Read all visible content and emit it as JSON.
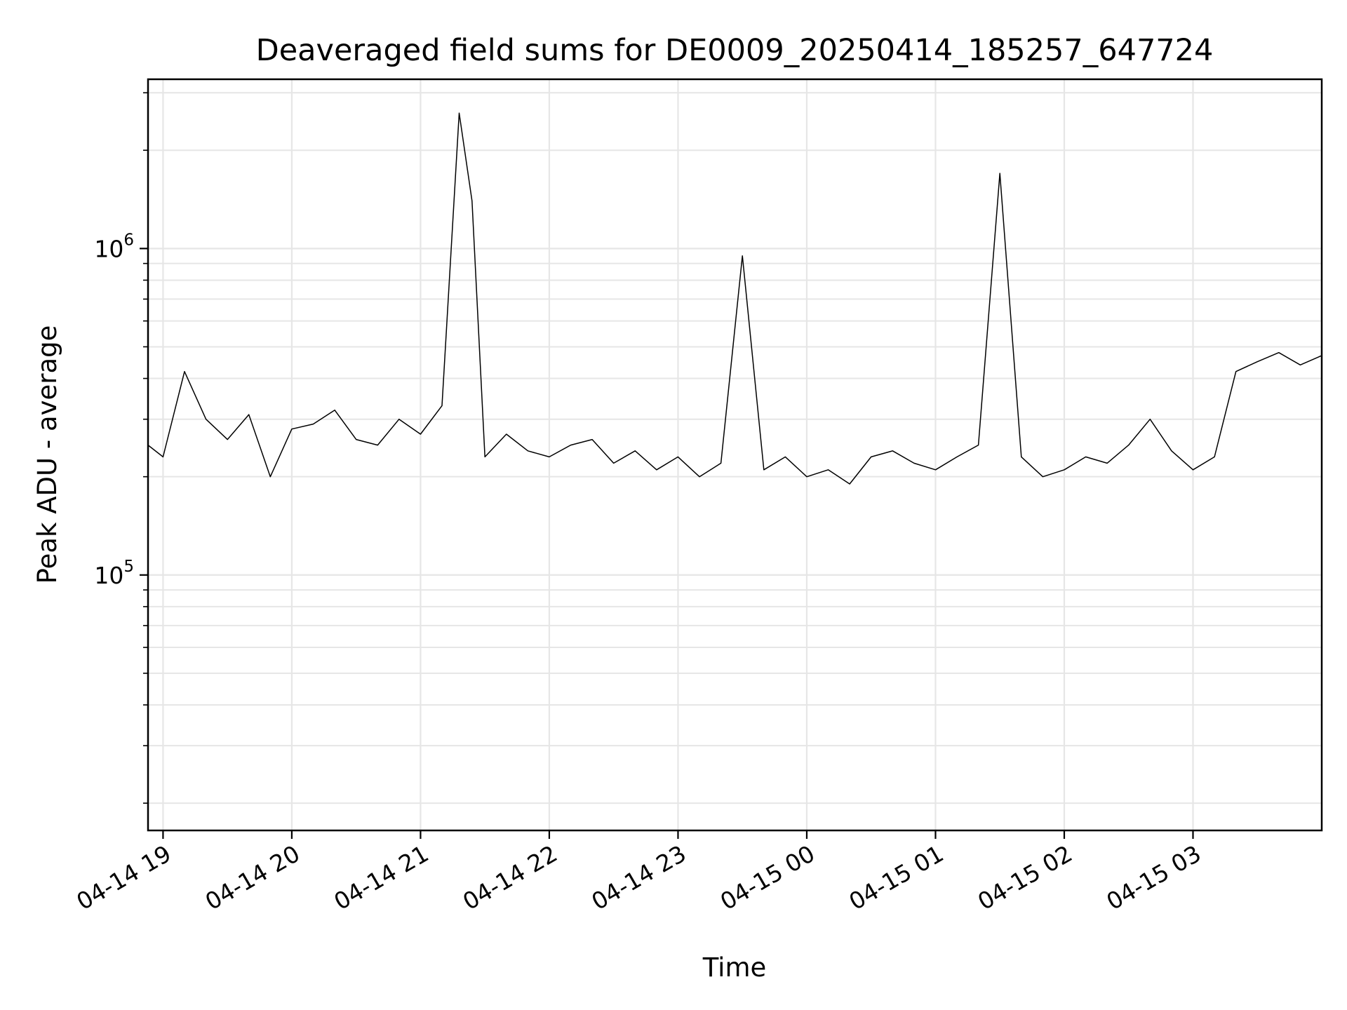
{
  "chart_data": {
    "type": "line",
    "title": "Deaveraged field sums for DE0009_20250414_185257_647724",
    "xlabel": "Time",
    "ylabel": "Peak ADU - average",
    "y_scale": "log",
    "grid": true,
    "grid_color": "#e6e6e6",
    "line_color": "#000000",
    "xlim": [
      "2025-04-14 18:53",
      "2025-04-15 04:00"
    ],
    "ylim": [
      16500,
      3300000
    ],
    "x_ticks": [
      {
        "label": "04-14 19",
        "value": "2025-04-14 19:00"
      },
      {
        "label": "04-14 20",
        "value": "2025-04-14 20:00"
      },
      {
        "label": "04-14 21",
        "value": "2025-04-14 21:00"
      },
      {
        "label": "04-14 22",
        "value": "2025-04-14 22:00"
      },
      {
        "label": "04-14 23",
        "value": "2025-04-14 23:00"
      },
      {
        "label": "04-15 00",
        "value": "2025-04-15 00:00"
      },
      {
        "label": "04-15 01",
        "value": "2025-04-15 01:00"
      },
      {
        "label": "04-15 02",
        "value": "2025-04-15 02:00"
      },
      {
        "label": "04-15 03",
        "value": "2025-04-15 03:00"
      }
    ],
    "y_ticks": [
      {
        "base": "10",
        "exp": "5",
        "value": 100000
      },
      {
        "base": "10",
        "exp": "6",
        "value": 1000000
      }
    ],
    "series": [
      {
        "x": [
          "2025-04-14 18:53",
          "2025-04-14 19:00",
          "2025-04-14 19:10",
          "2025-04-14 19:20",
          "2025-04-14 19:30",
          "2025-04-14 19:40",
          "2025-04-14 19:50",
          "2025-04-14 20:00",
          "2025-04-14 20:10",
          "2025-04-14 20:20",
          "2025-04-14 20:30",
          "2025-04-14 20:40",
          "2025-04-14 20:50",
          "2025-04-14 21:00",
          "2025-04-14 21:10",
          "2025-04-14 21:18",
          "2025-04-14 21:24",
          "2025-04-14 21:30",
          "2025-04-14 21:40",
          "2025-04-14 21:50",
          "2025-04-14 22:00",
          "2025-04-14 22:10",
          "2025-04-14 22:20",
          "2025-04-14 22:30",
          "2025-04-14 22:40",
          "2025-04-14 22:50",
          "2025-04-14 23:00",
          "2025-04-14 23:10",
          "2025-04-14 23:20",
          "2025-04-14 23:30",
          "2025-04-14 23:40",
          "2025-04-14 23:50",
          "2025-04-15 00:00",
          "2025-04-15 00:10",
          "2025-04-15 00:20",
          "2025-04-15 00:30",
          "2025-04-15 00:40",
          "2025-04-15 00:50",
          "2025-04-15 01:00",
          "2025-04-15 01:10",
          "2025-04-15 01:20",
          "2025-04-15 01:30",
          "2025-04-15 01:40",
          "2025-04-15 01:50",
          "2025-04-15 02:00",
          "2025-04-15 02:10",
          "2025-04-15 02:20",
          "2025-04-15 02:30",
          "2025-04-15 02:40",
          "2025-04-15 02:50",
          "2025-04-15 03:00",
          "2025-04-15 03:10",
          "2025-04-15 03:20",
          "2025-04-15 03:30",
          "2025-04-15 03:40",
          "2025-04-15 03:50",
          "2025-04-15 04:00"
        ],
        "y": [
          250000,
          230000,
          420000,
          300000,
          260000,
          310000,
          200000,
          280000,
          290000,
          320000,
          260000,
          250000,
          300000,
          270000,
          330000,
          2600000,
          1400000,
          230000,
          270000,
          240000,
          230000,
          250000,
          260000,
          220000,
          240000,
          210000,
          230000,
          200000,
          220000,
          950000,
          210000,
          230000,
          200000,
          210000,
          190000,
          230000,
          240000,
          220000,
          210000,
          230000,
          250000,
          1700000,
          230000,
          200000,
          210000,
          230000,
          220000,
          250000,
          300000,
          240000,
          210000,
          230000,
          420000,
          450000,
          480000,
          440000,
          470000
        ]
      }
    ]
  }
}
